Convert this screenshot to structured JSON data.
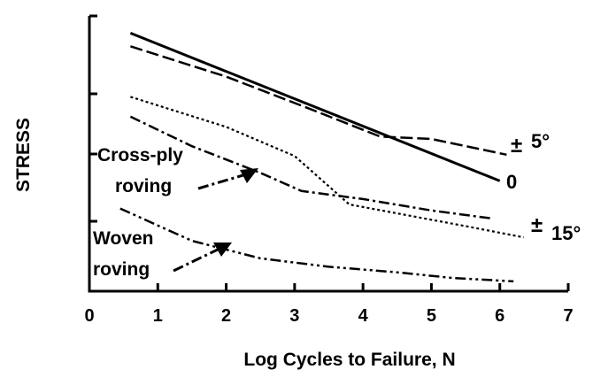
{
  "chart_data": {
    "type": "line",
    "title": "",
    "xlabel": "Log Cycles to Failure, N",
    "ylabel": "STRESS",
    "xlim": [
      0,
      7
    ],
    "ylim": [
      0,
      4
    ],
    "x_ticks": [
      0,
      1,
      2,
      3,
      4,
      5,
      6,
      7
    ],
    "x_tick_labels": [
      "0",
      "1",
      "2",
      "3",
      "4",
      "5",
      "6",
      "7"
    ],
    "y_ticks": [
      1,
      2,
      3,
      4
    ],
    "y_tick_labels": [
      "",
      "",
      "",
      ""
    ],
    "grid": false,
    "series": [
      {
        "name": "0",
        "style": "solid",
        "points": [
          [
            0.6,
            3.78
          ],
          [
            6.0,
            1.6
          ]
        ]
      },
      {
        "name": "± 5°",
        "style": "dashed",
        "points": [
          [
            0.6,
            3.61
          ],
          [
            2.0,
            3.22
          ],
          [
            3.2,
            2.76
          ],
          [
            4.25,
            2.29
          ],
          [
            5.0,
            2.25
          ],
          [
            6.1,
            1.99
          ]
        ]
      },
      {
        "name": "± 15°",
        "style": "dotted",
        "points": [
          [
            0.6,
            2.95
          ],
          [
            2.0,
            2.45
          ],
          [
            3.0,
            1.97
          ],
          [
            3.8,
            1.25
          ],
          [
            5.5,
            0.93
          ],
          [
            6.35,
            0.77
          ]
        ]
      },
      {
        "name": "Cross-ply roving",
        "style": "dashdot",
        "points": [
          [
            0.6,
            2.62
          ],
          [
            1.5,
            2.13
          ],
          [
            2.5,
            1.72
          ],
          [
            3.1,
            1.45
          ],
          [
            4.0,
            1.33
          ],
          [
            5.0,
            1.16
          ],
          [
            5.9,
            1.04
          ]
        ]
      },
      {
        "name": "Woven roving",
        "style": "dashdotdot",
        "points": [
          [
            0.45,
            1.19
          ],
          [
            1.5,
            0.72
          ],
          [
            2.5,
            0.47
          ],
          [
            3.5,
            0.35
          ],
          [
            4.5,
            0.27
          ],
          [
            5.3,
            0.19
          ],
          [
            6.2,
            0.14
          ]
        ]
      }
    ],
    "annotations": [
      {
        "id": "zero",
        "text": "0"
      },
      {
        "id": "pm5_sign",
        "text": "±"
      },
      {
        "id": "pm5_value",
        "text": "5°"
      },
      {
        "id": "pm15_sign",
        "text": "±"
      },
      {
        "id": "pm15_value",
        "text": "15°"
      },
      {
        "id": "crossply_line1",
        "text": "Cross-ply"
      },
      {
        "id": "crossply_line2",
        "text": "roving"
      },
      {
        "id": "woven_line1",
        "text": "Woven"
      },
      {
        "id": "woven_line2",
        "text": "roving"
      }
    ]
  }
}
